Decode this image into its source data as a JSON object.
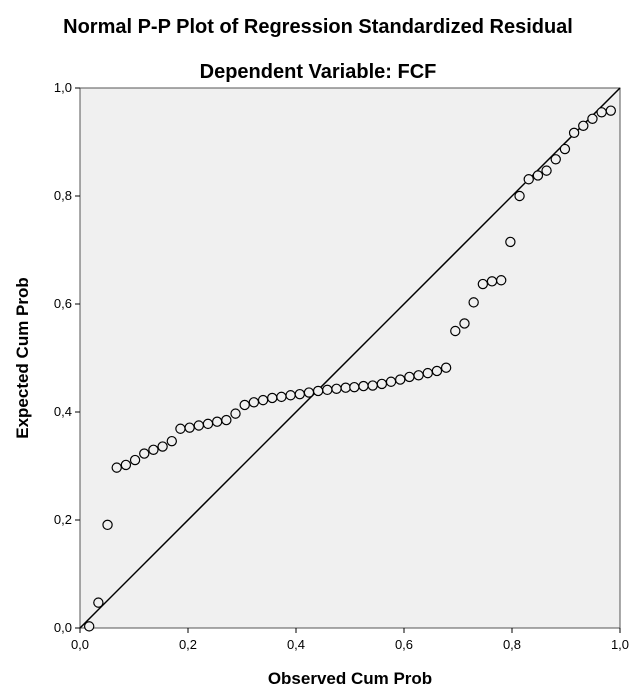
{
  "chart_data": {
    "type": "scatter",
    "title": "Normal P-P Plot of Regression Standardized Residual",
    "subtitle": "Dependent Variable: FCF",
    "xlabel": "Observed Cum Prob",
    "ylabel": "Expected Cum Prob",
    "xlim": [
      0,
      1
    ],
    "ylim": [
      0,
      1
    ],
    "ticks": [
      "0,0",
      "0,2",
      "0,4",
      "0,6",
      "0,8",
      "1,0"
    ],
    "reference_line": "diagonal",
    "grid": false,
    "colors": {
      "plot_background": "#f0f0f0",
      "marker_stroke": "#000000",
      "line": "#000000"
    },
    "points": [
      [
        0.017,
        0.003
      ],
      [
        0.034,
        0.047
      ],
      [
        0.051,
        0.191
      ],
      [
        0.068,
        0.297
      ],
      [
        0.085,
        0.302
      ],
      [
        0.102,
        0.311
      ],
      [
        0.119,
        0.323
      ],
      [
        0.136,
        0.33
      ],
      [
        0.153,
        0.336
      ],
      [
        0.17,
        0.346
      ],
      [
        0.186,
        0.369
      ],
      [
        0.203,
        0.371
      ],
      [
        0.22,
        0.375
      ],
      [
        0.237,
        0.378
      ],
      [
        0.254,
        0.382
      ],
      [
        0.271,
        0.385
      ],
      [
        0.288,
        0.397
      ],
      [
        0.305,
        0.413
      ],
      [
        0.322,
        0.418
      ],
      [
        0.339,
        0.422
      ],
      [
        0.356,
        0.426
      ],
      [
        0.373,
        0.428
      ],
      [
        0.39,
        0.431
      ],
      [
        0.407,
        0.433
      ],
      [
        0.424,
        0.436
      ],
      [
        0.441,
        0.439
      ],
      [
        0.458,
        0.441
      ],
      [
        0.475,
        0.443
      ],
      [
        0.492,
        0.445
      ],
      [
        0.508,
        0.446
      ],
      [
        0.525,
        0.448
      ],
      [
        0.542,
        0.449
      ],
      [
        0.559,
        0.452
      ],
      [
        0.576,
        0.456
      ],
      [
        0.593,
        0.46
      ],
      [
        0.61,
        0.465
      ],
      [
        0.627,
        0.468
      ],
      [
        0.644,
        0.472
      ],
      [
        0.661,
        0.476
      ],
      [
        0.678,
        0.482
      ],
      [
        0.695,
        0.55
      ],
      [
        0.712,
        0.564
      ],
      [
        0.729,
        0.603
      ],
      [
        0.746,
        0.637
      ],
      [
        0.763,
        0.642
      ],
      [
        0.78,
        0.644
      ],
      [
        0.797,
        0.715
      ],
      [
        0.814,
        0.8
      ],
      [
        0.831,
        0.831
      ],
      [
        0.848,
        0.838
      ],
      [
        0.864,
        0.847
      ],
      [
        0.881,
        0.868
      ],
      [
        0.898,
        0.887
      ],
      [
        0.915,
        0.917
      ],
      [
        0.932,
        0.93
      ],
      [
        0.949,
        0.943
      ],
      [
        0.966,
        0.955
      ],
      [
        0.983,
        0.958
      ]
    ]
  }
}
